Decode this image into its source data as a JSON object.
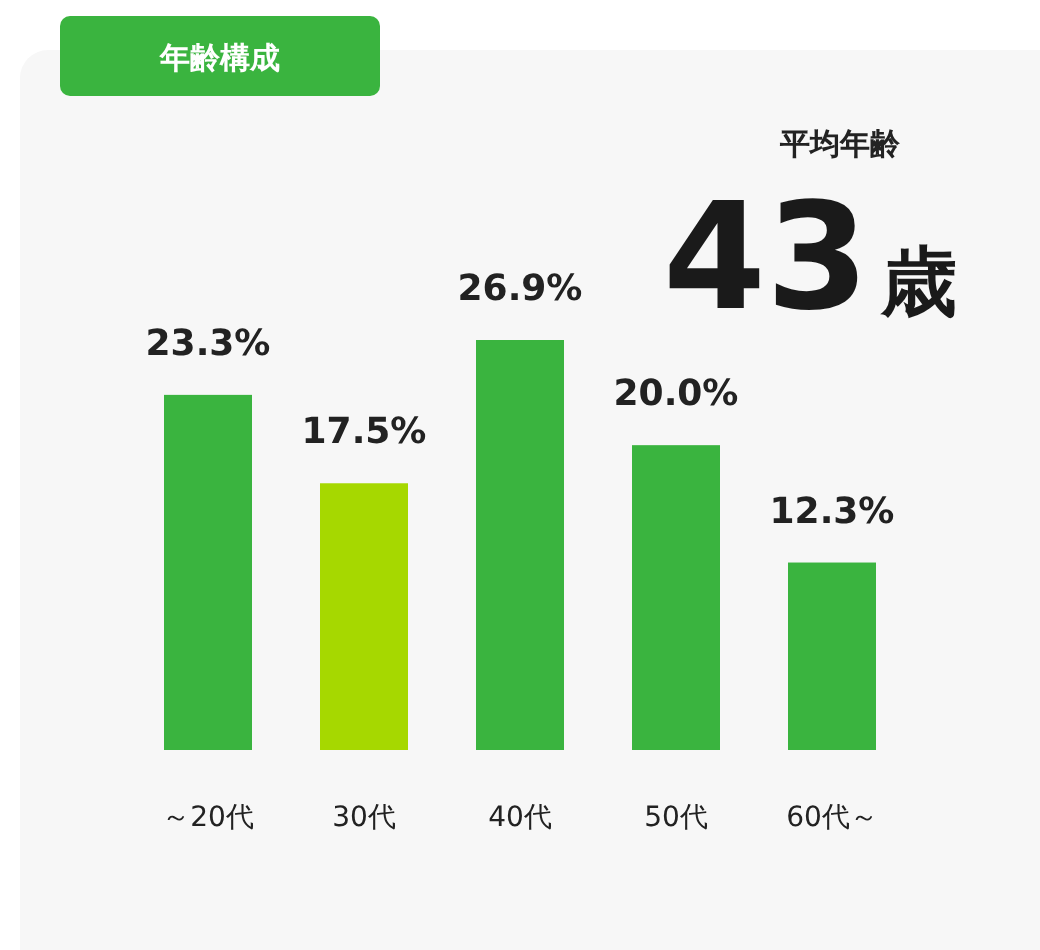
{
  "chart_data": {
    "type": "bar",
    "title": "年齢構成",
    "categories": [
      "～20代",
      "30代",
      "40代",
      "50代",
      "60代～"
    ],
    "values": [
      23.3,
      17.5,
      26.9,
      20.0,
      12.3
    ],
    "colors": [
      "#3ab43f",
      "#a6d800",
      "#3ab43f",
      "#3ab43f",
      "#3ab43f"
    ],
    "value_labels": [
      "23.3%",
      "17.5%",
      "26.9%",
      "20.0%",
      "12.3%"
    ],
    "annotations": [
      "平均年齢",
      "43歳"
    ]
  }
}
